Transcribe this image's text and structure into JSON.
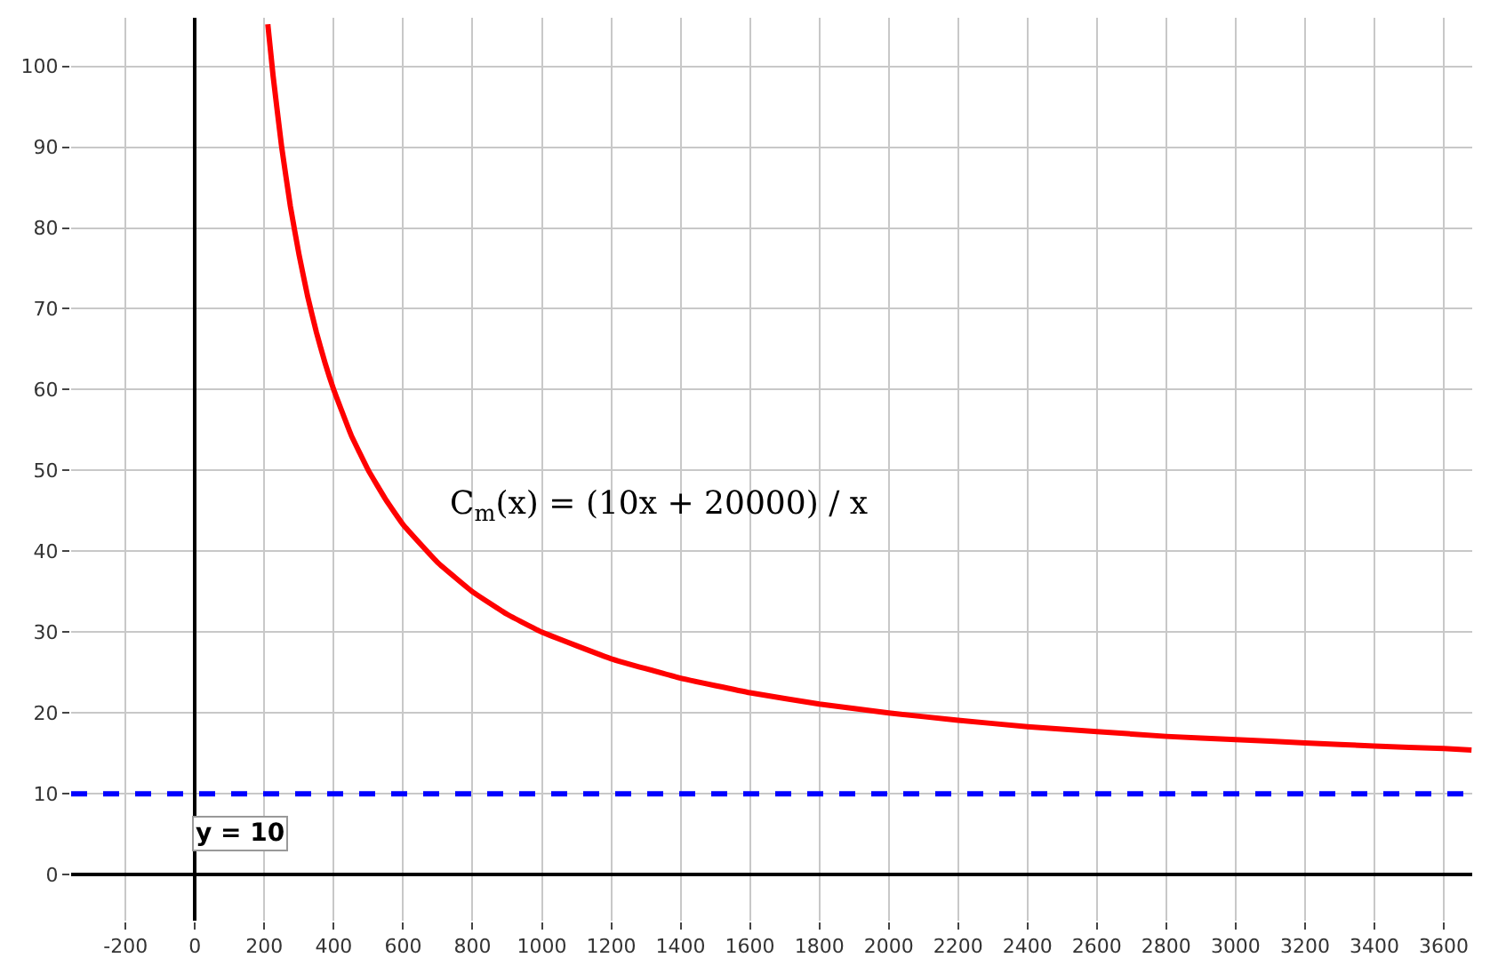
{
  "chart_data": {
    "type": "line",
    "x": [
      210,
      225,
      250,
      275,
      300,
      325,
      350,
      375,
      400,
      450,
      500,
      550,
      600,
      700,
      800,
      900,
      1000,
      1200,
      1400,
      1600,
      1800,
      2000,
      2200,
      2400,
      2600,
      2800,
      3000,
      3200,
      3400,
      3600,
      3680
    ],
    "series": [
      {
        "color": "#ff0000",
        "values": [
          105.2,
          98.9,
          90,
          82.7,
          76.7,
          71.5,
          67.1,
          63.3,
          60,
          54.4,
          50,
          46.4,
          43.3,
          38.6,
          35,
          32.2,
          30,
          26.7,
          24.3,
          22.5,
          21.1,
          20,
          19.1,
          18.3,
          17.7,
          17.1,
          16.7,
          16.3,
          15.9,
          15.6,
          15.4
        ]
      }
    ],
    "xlim": [
      -357,
      3682
    ],
    "ylim": [
      -5.7,
      106
    ],
    "xticks": [
      -200,
      0,
      200,
      400,
      600,
      800,
      1000,
      1200,
      1400,
      1600,
      1800,
      2000,
      2200,
      2400,
      2600,
      2800,
      3000,
      3200,
      3400,
      3600
    ],
    "yticks": [
      0,
      10,
      20,
      30,
      40,
      50,
      60,
      70,
      80,
      90,
      100
    ],
    "grid": true,
    "marker": "none",
    "line_style": "solid",
    "ref_lines": [
      {
        "axis": "y",
        "value": 10,
        "label": "y = 10",
        "color": "#0000ff",
        "line_style": "dashed"
      }
    ],
    "annotations": [
      "C$_{m}$(x) = (10x + 20000) / x"
    ]
  }
}
